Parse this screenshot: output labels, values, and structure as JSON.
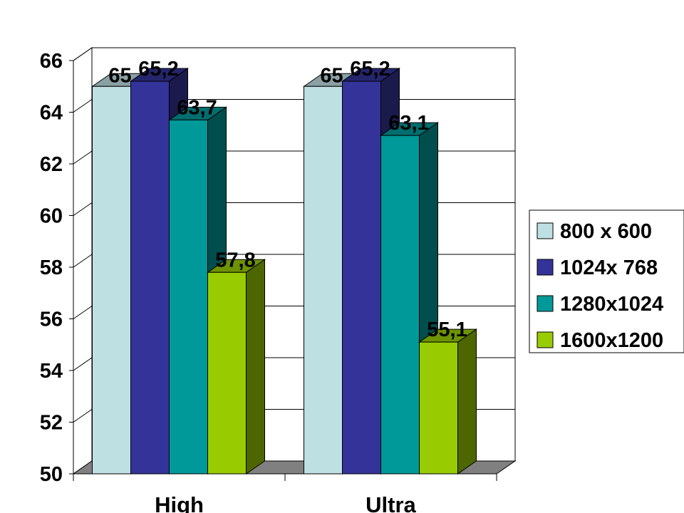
{
  "chart_data": {
    "type": "bar",
    "categories": [
      "High",
      "Ultra"
    ],
    "series": [
      {
        "name": "800 x  600",
        "values": [
          65,
          65
        ],
        "labels": [
          "65",
          "65"
        ],
        "color": "#bfe0e3"
      },
      {
        "name": "1024x 768",
        "values": [
          65.2,
          65.2
        ],
        "labels": [
          "65,2",
          "65,2"
        ],
        "color": "#343399"
      },
      {
        "name": "1280x1024",
        "values": [
          63.7,
          63.1
        ],
        "labels": [
          "63,7",
          "63,1"
        ],
        "color": "#009999"
      },
      {
        "name": "1600x1200",
        "values": [
          57.8,
          55.1
        ],
        "labels": [
          "57,8",
          "55,1"
        ],
        "color": "#99cc00"
      }
    ],
    "ylim": [
      50,
      66
    ],
    "yticks": [
      "50",
      "52",
      "54",
      "56",
      "58",
      "60",
      "62",
      "64",
      "66"
    ],
    "grid": true,
    "legend": "right",
    "style": "3d-clustered-column"
  }
}
